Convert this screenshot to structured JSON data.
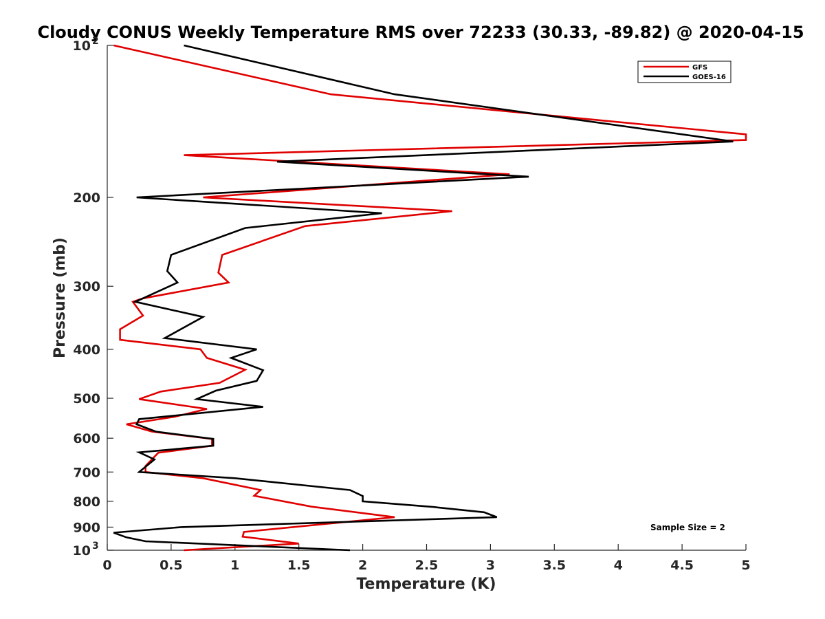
{
  "chart_data": {
    "type": "line",
    "title": "Cloudy CONUS Weekly Temperature RMS over 72233 (30.33, -89.82) @ 2020-04-15",
    "xlabel": "Temperature (K)",
    "ylabel": "Pressure (mb)",
    "xlim": [
      0,
      5
    ],
    "ylim": [
      100,
      1000
    ],
    "y_scale": "log",
    "y_reversed": true,
    "x_ticks": [
      "0",
      "0.5",
      "1",
      "1.5",
      "2",
      "2.5",
      "3",
      "3.5",
      "4",
      "4.5",
      "5"
    ],
    "y_ticks": [
      {
        "value": 100,
        "base": "10",
        "exp": "2"
      },
      {
        "value": 200,
        "label": "200"
      },
      {
        "value": 300,
        "label": "300"
      },
      {
        "value": 400,
        "label": "400"
      },
      {
        "value": 500,
        "label": "500"
      },
      {
        "value": 600,
        "label": "600"
      },
      {
        "value": 700,
        "label": "700"
      },
      {
        "value": 800,
        "label": "800"
      },
      {
        "value": 900,
        "label": "900"
      },
      {
        "value": 1000,
        "base": "10",
        "exp": "3"
      }
    ],
    "grid": false,
    "legend_position": "top-right",
    "annotation": "Sample Size = 2",
    "series": [
      {
        "name": "GFS",
        "color": "#e00000",
        "points": [
          [
            0.05,
            100
          ],
          [
            1.75,
            125
          ],
          [
            5.0,
            150
          ],
          [
            5.0,
            154
          ],
          [
            0.6,
            165
          ],
          [
            3.15,
            180
          ],
          [
            0.75,
            200
          ],
          [
            2.7,
            213
          ],
          [
            1.55,
            228
          ],
          [
            0.9,
            260
          ],
          [
            0.87,
            282
          ],
          [
            0.95,
            295
          ],
          [
            0.28,
            317
          ],
          [
            0.2,
            322
          ],
          [
            0.28,
            343
          ],
          [
            0.1,
            365
          ],
          [
            0.1,
            383
          ],
          [
            0.73,
            400
          ],
          [
            0.78,
            416
          ],
          [
            1.08,
            439
          ],
          [
            0.88,
            466
          ],
          [
            0.42,
            485
          ],
          [
            0.25,
            502
          ],
          [
            0.78,
            525
          ],
          [
            0.53,
            544
          ],
          [
            0.15,
            563
          ],
          [
            0.35,
            582
          ],
          [
            0.82,
            602
          ],
          [
            0.82,
            621
          ],
          [
            0.4,
            641
          ],
          [
            0.3,
            681
          ],
          [
            0.3,
            700
          ],
          [
            0.75,
            720
          ],
          [
            1.2,
            760
          ],
          [
            1.15,
            780
          ],
          [
            1.6,
            820
          ],
          [
            2.25,
            860
          ],
          [
            1.07,
            920
          ],
          [
            1.06,
            940
          ],
          [
            1.5,
            970
          ],
          [
            0.6,
            1000
          ]
        ]
      },
      {
        "name": "GOES-16",
        "color": "#000000",
        "points": [
          [
            0.6,
            100
          ],
          [
            2.25,
            125
          ],
          [
            4.9,
            155
          ],
          [
            1.33,
            170
          ],
          [
            3.3,
            182
          ],
          [
            0.23,
            200
          ],
          [
            2.15,
            215
          ],
          [
            1.08,
            230
          ],
          [
            0.5,
            260
          ],
          [
            0.47,
            280
          ],
          [
            0.55,
            295
          ],
          [
            0.22,
            322
          ],
          [
            0.75,
            345
          ],
          [
            0.45,
            380
          ],
          [
            1.17,
            400
          ],
          [
            0.97,
            416
          ],
          [
            1.22,
            440
          ],
          [
            1.17,
            462
          ],
          [
            0.85,
            483
          ],
          [
            0.7,
            502
          ],
          [
            1.22,
            520
          ],
          [
            0.25,
            550
          ],
          [
            0.23,
            563
          ],
          [
            0.38,
            582
          ],
          [
            0.83,
            602
          ],
          [
            0.83,
            621
          ],
          [
            0.25,
            640
          ],
          [
            0.37,
            661
          ],
          [
            0.25,
            700
          ],
          [
            1.0,
            720
          ],
          [
            1.9,
            760
          ],
          [
            2.0,
            781
          ],
          [
            2.0,
            800
          ],
          [
            2.55,
            821
          ],
          [
            2.95,
            841
          ],
          [
            3.05,
            860
          ],
          [
            0.58,
            900
          ],
          [
            0.05,
            923
          ],
          [
            0.15,
            943
          ],
          [
            0.3,
            960
          ],
          [
            1.9,
            1000
          ]
        ]
      }
    ]
  }
}
